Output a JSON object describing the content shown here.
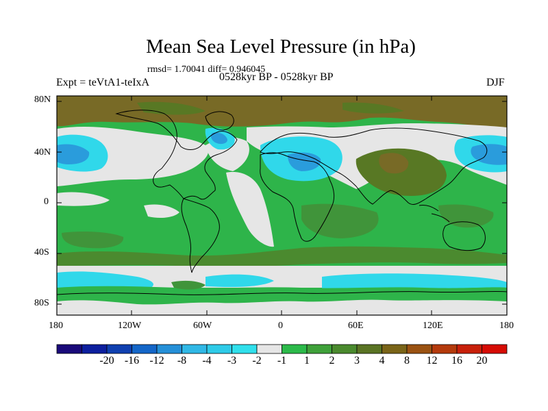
{
  "title": "Mean Sea Level Pressure (in hPa)",
  "stats_line": "rmsd= 1.70041 diff= 0.946045",
  "subtitle": "0528kyr BP - 0528kyr BP",
  "experiment": "Expt = teVtA1-teIxA",
  "season": "DJF",
  "y_axis_ticks": [
    "80N",
    "40N",
    "0",
    "40S",
    "80S"
  ],
  "x_axis_ticks": [
    "180",
    "120W",
    "60W",
    "0",
    "60E",
    "120E",
    "180"
  ],
  "colorbar": {
    "colors": [
      "#1a0a7a",
      "#0d1f9e",
      "#1040b0",
      "#1466c8",
      "#2590d8",
      "#30b8e6",
      "#2ecbe8",
      "#30e0ec",
      "#e6e6e6",
      "#2cba4a",
      "#3fa13a",
      "#4a8a2e",
      "#5a7424",
      "#7a6418",
      "#9a5212",
      "#b43a0c",
      "#c8200a",
      "#d60c04"
    ],
    "labels": [
      "-20",
      "-16",
      "-12",
      "-8",
      "-4",
      "-3",
      "-2",
      "-1",
      "1",
      "2",
      "3",
      "4",
      "8",
      "12",
      "16",
      "20"
    ]
  },
  "map_colors": {
    "arctic_brown": "#786a26",
    "olive": "#587824",
    "green": "#2eb44a",
    "dark_green": "#40943a",
    "light_gray": "#e6e6e6",
    "light_cyan": "#30d8ea",
    "mid_blue": "#2a9cdc",
    "deep_blue": "#1a78cc"
  }
}
